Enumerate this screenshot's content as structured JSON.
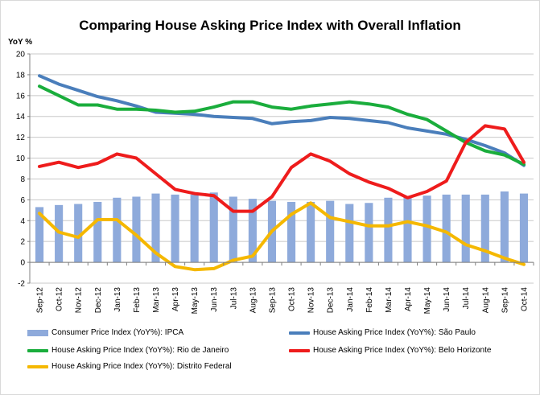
{
  "chart_data": {
    "type": "line",
    "title": "Comparing House Asking Price Index  with Overall Inflation",
    "ylabel": "YoY %",
    "ylim": [
      -2,
      20
    ],
    "yticks": [
      -2,
      0,
      2,
      4,
      6,
      8,
      10,
      12,
      14,
      16,
      18,
      20
    ],
    "categories": [
      "Sep-12",
      "Oct-12",
      "Nov-12",
      "Dec-12",
      "Jan-13",
      "Feb-13",
      "Mar-13",
      "Apr-13",
      "May-13",
      "Jun-13",
      "Jul-13",
      "Aug-13",
      "Sep-13",
      "Oct-13",
      "Nov-13",
      "Dec-13",
      "Jan-14",
      "Feb-14",
      "Mar-14",
      "Apr-14",
      "May-14",
      "Jun-14",
      "Jul-14",
      "Aug-14",
      "Sep-14",
      "Oct-14"
    ],
    "grid": true,
    "legend_position": "bottom",
    "bar_series": {
      "name": "Consumer Price Index (YoY%): IPCA",
      "color": "#8eaadb",
      "values": [
        5.3,
        5.5,
        5.6,
        5.8,
        6.2,
        6.3,
        6.6,
        6.5,
        6.5,
        6.7,
        6.3,
        6.1,
        5.9,
        5.8,
        5.8,
        5.9,
        5.6,
        5.7,
        6.2,
        6.3,
        6.4,
        6.5,
        6.5,
        6.5,
        6.8,
        6.6
      ]
    },
    "series": [
      {
        "name": "House Asking Price Index (YoY%): São Paulo",
        "color": "#4a7ebb",
        "values": [
          17.9,
          17.1,
          16.5,
          15.9,
          15.5,
          15.0,
          14.4,
          14.3,
          14.2,
          14.0,
          13.9,
          13.8,
          13.3,
          13.5,
          13.6,
          13.9,
          13.8,
          13.6,
          13.4,
          12.9,
          12.6,
          12.3,
          11.8,
          11.2,
          10.5,
          9.3
        ]
      },
      {
        "name": "House Asking Price Index (YoY%): Rio de Janeiro",
        "color": "#1aad3c",
        "values": [
          16.9,
          16.0,
          15.1,
          15.1,
          14.7,
          14.7,
          14.6,
          14.4,
          14.5,
          14.9,
          15.4,
          15.4,
          14.9,
          14.7,
          15.0,
          15.2,
          15.4,
          15.2,
          14.9,
          14.2,
          13.7,
          12.6,
          11.5,
          10.7,
          10.3,
          9.4
        ]
      },
      {
        "name": "House Asking Price Index (YoY%): Belo Horizonte",
        "color": "#ee1c1c",
        "values": [
          9.2,
          9.6,
          9.1,
          9.5,
          10.4,
          10.0,
          8.5,
          7.0,
          6.6,
          6.4,
          4.9,
          4.9,
          6.3,
          9.1,
          10.4,
          9.7,
          8.5,
          7.7,
          7.1,
          6.2,
          6.8,
          7.8,
          11.5,
          13.1,
          12.8,
          9.6
        ]
      },
      {
        "name": "House Asking Price Index (YoY%): Distrito Federal",
        "color": "#f5b800",
        "values": [
          4.7,
          2.9,
          2.4,
          4.1,
          4.1,
          2.6,
          0.9,
          -0.4,
          -0.7,
          -0.6,
          0.2,
          0.6,
          3.0,
          4.6,
          5.7,
          4.3,
          3.9,
          3.5,
          3.5,
          3.9,
          3.5,
          2.9,
          1.7,
          1.1,
          0.4,
          -0.2
        ]
      }
    ]
  }
}
